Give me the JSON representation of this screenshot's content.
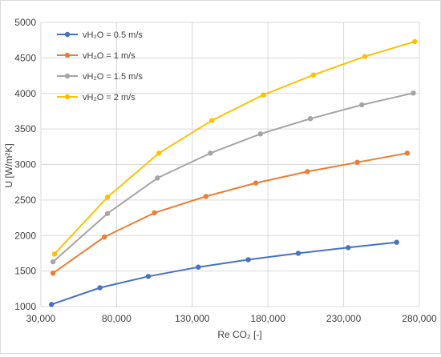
{
  "chart_data": {
    "type": "line",
    "title": "",
    "xlabel": "Re CO₂ [-]",
    "ylabel": "U [W/m²K]",
    "xlim": [
      30000,
      280000
    ],
    "ylim": [
      1000,
      5000
    ],
    "x_ticks": [
      30000,
      80000,
      130000,
      180000,
      230000,
      280000
    ],
    "x_tick_labels": [
      "30,000",
      "80,000",
      "130,000",
      "180,000",
      "230,000",
      "280,000"
    ],
    "y_ticks": [
      1000,
      1500,
      2000,
      2500,
      3000,
      3500,
      4000,
      4500,
      5000
    ],
    "y_tick_labels": [
      "1000",
      "1500",
      "2000",
      "2500",
      "3000",
      "3500",
      "4000",
      "4500",
      "5000"
    ],
    "grid": true,
    "legend_position": "top-left",
    "series": [
      {
        "name": "vH₂O = 0.5 m/s",
        "color": "#4472c4",
        "x": [
          37000,
          69000,
          101000,
          134000,
          167000,
          200000,
          233000,
          265000
        ],
        "y": [
          1030,
          1265,
          1425,
          1555,
          1660,
          1750,
          1830,
          1905
        ]
      },
      {
        "name": "vH₂O = 1 m/s",
        "color": "#ed7d31",
        "x": [
          38000,
          72000,
          105000,
          139000,
          172000,
          206000,
          239000,
          272000
        ],
        "y": [
          1470,
          1980,
          2320,
          2550,
          2740,
          2900,
          3030,
          3160
        ]
      },
      {
        "name": "vH₂O = 1.5 m/s",
        "color": "#a5a5a5",
        "x": [
          38000,
          74000,
          107000,
          142000,
          175000,
          208000,
          242000,
          276000
        ],
        "y": [
          1630,
          2310,
          2810,
          3160,
          3430,
          3645,
          3840,
          4005
        ]
      },
      {
        "name": "vH₂O = 2 m/s",
        "color": "#ffc000",
        "x": [
          39000,
          74000,
          108000,
          143000,
          177000,
          210000,
          244000,
          277000
        ],
        "y": [
          1740,
          2540,
          3160,
          3620,
          3980,
          4260,
          4520,
          4730
        ]
      }
    ]
  }
}
